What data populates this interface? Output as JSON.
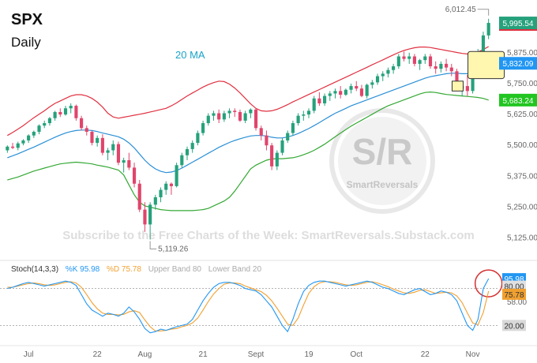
{
  "header": {
    "title": "SPX",
    "subtitle": "Daily"
  },
  "annotations": {
    "ma_label": "20 MA",
    "high_callout": "6,012.45",
    "low_callout": "5,119.26"
  },
  "watermark": {
    "logo_text": "S/R",
    "logo_subtext": "SmartReversals",
    "subscribe_text": "Subscribe to the Free Charts of the Week: SmartReversals.Substack.com"
  },
  "price_badges": [
    {
      "label": "5,995.54",
      "value": 5995.54,
      "color": "#26a17b"
    },
    {
      "label": "5,832.09",
      "value": 5832.09,
      "color": "#2196f3"
    },
    {
      "label": "5,683.24",
      "value": 5683.24,
      "color": "#21c521"
    }
  ],
  "stoch_legend": {
    "name": "Stoch(14,3,3)",
    "k_label": "%K 95.98",
    "d_label": "%D 75.78",
    "upper_label": "Upper Band 80",
    "lower_label": "Lower Band 20"
  },
  "stoch_badges": [
    {
      "label": "95.98",
      "value": 95.98,
      "color": "#2196f3"
    },
    {
      "label": "80.00",
      "value": 80.0,
      "color": "#e0e0e0"
    },
    {
      "label": "75.78",
      "value": 75.78,
      "color": "#f0a030"
    },
    {
      "label": "20.00",
      "value": 20.0,
      "color": "#d9d9d9"
    }
  ],
  "colors": {
    "up": "#26a17b",
    "down": "#e0456b",
    "ma": "#2a8fd6",
    "upper_band": "#e03040",
    "lower_band": "#34a834",
    "k": "#2196f3",
    "d": "#f0a030"
  },
  "chart_data": {
    "type": "candlestick",
    "x_tick_labels": [
      "Jul",
      "22",
      "Aug",
      "21",
      "Sept",
      "19",
      "Oct",
      "22",
      "Nov"
    ],
    "y_ticks": [
      5125,
      5250,
      5375,
      5500,
      5625,
      5750,
      5875
    ],
    "y_tick_labels": [
      "5,125.00",
      "5,250.00",
      "5,375.00",
      "5,500.00",
      "5,625.00",
      "5,750.00",
      "5,875.00"
    ],
    "ylim": [
      5060,
      6050
    ],
    "candles": [
      [
        5480,
        5500,
        5470,
        5495
      ],
      [
        5495,
        5510,
        5485,
        5490
      ],
      [
        5490,
        5515,
        5480,
        5508
      ],
      [
        5508,
        5525,
        5500,
        5520
      ],
      [
        5520,
        5545,
        5510,
        5540
      ],
      [
        5540,
        5560,
        5530,
        5555
      ],
      [
        5555,
        5585,
        5545,
        5580
      ],
      [
        5580,
        5600,
        5570,
        5590
      ],
      [
        5590,
        5615,
        5580,
        5610
      ],
      [
        5610,
        5640,
        5600,
        5635
      ],
      [
        5635,
        5650,
        5615,
        5625
      ],
      [
        5625,
        5660,
        5620,
        5650
      ],
      [
        5650,
        5670,
        5630,
        5660
      ],
      [
        5660,
        5665,
        5600,
        5610
      ],
      [
        5610,
        5620,
        5560,
        5570
      ],
      [
        5570,
        5580,
        5540,
        5555
      ],
      [
        5555,
        5560,
        5500,
        5510
      ],
      [
        5510,
        5540,
        5495,
        5530
      ],
      [
        5530,
        5545,
        5460,
        5470
      ],
      [
        5470,
        5490,
        5440,
        5480
      ],
      [
        5480,
        5520,
        5460,
        5505
      ],
      [
        5505,
        5515,
        5420,
        5430
      ],
      [
        5430,
        5450,
        5390,
        5440
      ],
      [
        5440,
        5470,
        5400,
        5410
      ],
      [
        5410,
        5430,
        5330,
        5345
      ],
      [
        5345,
        5360,
        5230,
        5240
      ],
      [
        5240,
        5270,
        5150,
        5180
      ],
      [
        5180,
        5270,
        5119,
        5260
      ],
      [
        5260,
        5300,
        5240,
        5290
      ],
      [
        5290,
        5330,
        5270,
        5320
      ],
      [
        5320,
        5355,
        5300,
        5345
      ],
      [
        5345,
        5350,
        5300,
        5335
      ],
      [
        5335,
        5430,
        5330,
        5420
      ],
      [
        5420,
        5470,
        5410,
        5460
      ],
      [
        5460,
        5495,
        5440,
        5485
      ],
      [
        5485,
        5520,
        5470,
        5510
      ],
      [
        5510,
        5560,
        5500,
        5550
      ],
      [
        5550,
        5600,
        5540,
        5590
      ],
      [
        5590,
        5630,
        5580,
        5620
      ],
      [
        5620,
        5640,
        5600,
        5630
      ],
      [
        5630,
        5645,
        5590,
        5605
      ],
      [
        5605,
        5640,
        5595,
        5630
      ],
      [
        5630,
        5650,
        5610,
        5640
      ],
      [
        5640,
        5650,
        5615,
        5635
      ],
      [
        5635,
        5645,
        5595,
        5600
      ],
      [
        5600,
        5640,
        5590,
        5630
      ],
      [
        5630,
        5650,
        5610,
        5645
      ],
      [
        5645,
        5650,
        5560,
        5570
      ],
      [
        5570,
        5580,
        5520,
        5540
      ],
      [
        5540,
        5560,
        5480,
        5500
      ],
      [
        5500,
        5510,
        5400,
        5415
      ],
      [
        5415,
        5480,
        5400,
        5470
      ],
      [
        5470,
        5530,
        5460,
        5520
      ],
      [
        5520,
        5560,
        5510,
        5550
      ],
      [
        5550,
        5600,
        5540,
        5590
      ],
      [
        5590,
        5630,
        5580,
        5620
      ],
      [
        5620,
        5640,
        5600,
        5625
      ],
      [
        5625,
        5650,
        5610,
        5640
      ],
      [
        5640,
        5700,
        5630,
        5690
      ],
      [
        5690,
        5715,
        5660,
        5670
      ],
      [
        5670,
        5710,
        5660,
        5700
      ],
      [
        5700,
        5720,
        5680,
        5710
      ],
      [
        5710,
        5730,
        5690,
        5720
      ],
      [
        5720,
        5740,
        5690,
        5705
      ],
      [
        5705,
        5730,
        5700,
        5725
      ],
      [
        5725,
        5750,
        5710,
        5740
      ],
      [
        5740,
        5760,
        5720,
        5730
      ],
      [
        5730,
        5745,
        5695,
        5700
      ],
      [
        5700,
        5750,
        5690,
        5745
      ],
      [
        5745,
        5765,
        5730,
        5755
      ],
      [
        5755,
        5790,
        5745,
        5780
      ],
      [
        5780,
        5800,
        5760,
        5790
      ],
      [
        5790,
        5815,
        5775,
        5805
      ],
      [
        5805,
        5830,
        5790,
        5820
      ],
      [
        5820,
        5870,
        5810,
        5860
      ],
      [
        5860,
        5880,
        5840,
        5850
      ],
      [
        5850,
        5875,
        5830,
        5860
      ],
      [
        5860,
        5870,
        5820,
        5830
      ],
      [
        5830,
        5850,
        5805,
        5845
      ],
      [
        5845,
        5870,
        5830,
        5860
      ],
      [
        5860,
        5870,
        5810,
        5820
      ],
      [
        5820,
        5840,
        5790,
        5810
      ],
      [
        5810,
        5840,
        5795,
        5830
      ],
      [
        5830,
        5850,
        5800,
        5815
      ],
      [
        5815,
        5830,
        5780,
        5800
      ],
      [
        5800,
        5810,
        5720,
        5730
      ],
      [
        5730,
        5750,
        5700,
        5740
      ],
      [
        5740,
        5785,
        5700,
        5720
      ],
      [
        5720,
        5810,
        5710,
        5800
      ],
      [
        5800,
        5890,
        5790,
        5880
      ],
      [
        5880,
        5960,
        5870,
        5945
      ],
      [
        5945,
        6012.45,
        5930,
        5995.54
      ]
    ],
    "ma20": [
      5450,
      5458,
      5466,
      5475,
      5484,
      5493,
      5503,
      5513,
      5523,
      5533,
      5542,
      5550,
      5556,
      5560,
      5562,
      5562,
      5560,
      5556,
      5550,
      5545,
      5540,
      5535,
      5525,
      5510,
      5490,
      5465,
      5440,
      5420,
      5405,
      5395,
      5390,
      5392,
      5398,
      5408,
      5420,
      5432,
      5444,
      5456,
      5468,
      5480,
      5492,
      5502,
      5512,
      5520,
      5527,
      5533,
      5538,
      5540,
      5540,
      5538,
      5533,
      5530,
      5530,
      5534,
      5540,
      5548,
      5558,
      5568,
      5580,
      5592,
      5605,
      5618,
      5630,
      5640,
      5650,
      5660,
      5668,
      5676,
      5684,
      5692,
      5700,
      5708,
      5716,
      5724,
      5732,
      5740,
      5748,
      5756,
      5764,
      5772,
      5778,
      5782,
      5786,
      5790,
      5792,
      5792,
      5790,
      5790,
      5795,
      5805,
      5818,
      5832.09
    ],
    "upper_band": [
      5540,
      5552,
      5566,
      5580,
      5596,
      5612,
      5626,
      5640,
      5656,
      5670,
      5680,
      5690,
      5700,
      5705,
      5705,
      5700,
      5690,
      5675,
      5655,
      5630,
      5615,
      5610,
      5614,
      5618,
      5622,
      5626,
      5630,
      5635,
      5640,
      5645,
      5650,
      5660,
      5672,
      5686,
      5700,
      5712,
      5724,
      5736,
      5746,
      5754,
      5760,
      5758,
      5748,
      5732,
      5712,
      5690,
      5668,
      5650,
      5640,
      5638,
      5640,
      5646,
      5655,
      5665,
      5676,
      5686,
      5696,
      5706,
      5716,
      5726,
      5736,
      5746,
      5756,
      5766,
      5776,
      5786,
      5796,
      5806,
      5816,
      5826,
      5836,
      5846,
      5856,
      5866,
      5876,
      5884,
      5890,
      5895,
      5898,
      5898,
      5896,
      5892,
      5888,
      5884,
      5880,
      5876,
      5872,
      5870,
      5872,
      5878,
      5888,
      5900
    ],
    "lower_band": [
      5360,
      5366,
      5372,
      5380,
      5388,
      5396,
      5402,
      5408,
      5414,
      5420,
      5425,
      5428,
      5430,
      5432,
      5430,
      5428,
      5425,
      5420,
      5416,
      5412,
      5406,
      5400,
      5380,
      5340,
      5300,
      5270,
      5255,
      5250,
      5245,
      5240,
      5238,
      5236,
      5236,
      5236,
      5236,
      5236,
      5238,
      5240,
      5245,
      5255,
      5265,
      5275,
      5290,
      5315,
      5345,
      5375,
      5405,
      5420,
      5430,
      5440,
      5445,
      5446,
      5446,
      5448,
      5450,
      5455,
      5462,
      5470,
      5480,
      5492,
      5505,
      5520,
      5535,
      5550,
      5564,
      5578,
      5590,
      5602,
      5614,
      5626,
      5638,
      5650,
      5660,
      5668,
      5676,
      5684,
      5692,
      5700,
      5708,
      5714,
      5716,
      5714,
      5710,
      5706,
      5704,
      5702,
      5700,
      5698,
      5696,
      5694,
      5690,
      5683.24
    ],
    "stochastic": {
      "ylim": [
        0,
        100
      ],
      "bands": [
        20,
        80
      ],
      "k": [
        80,
        82,
        85,
        88,
        90,
        88,
        86,
        84,
        86,
        88,
        90,
        92,
        90,
        85,
        70,
        55,
        45,
        40,
        35,
        40,
        38,
        35,
        40,
        50,
        42,
        30,
        15,
        8,
        10,
        14,
        12,
        15,
        18,
        20,
        22,
        30,
        45,
        60,
        72,
        82,
        88,
        90,
        90,
        88,
        85,
        80,
        78,
        76,
        70,
        60,
        50,
        35,
        20,
        10,
        30,
        55,
        75,
        85,
        90,
        92,
        92,
        90,
        88,
        86,
        84,
        86,
        88,
        90,
        92,
        90,
        86,
        82,
        80,
        76,
        72,
        70,
        74,
        78,
        80,
        75,
        70,
        72,
        76,
        74,
        70,
        60,
        40,
        20,
        12,
        30,
        80,
        95.98
      ],
      "d": [
        82,
        82,
        84,
        86,
        88,
        89,
        88,
        86,
        85,
        86,
        88,
        90,
        91,
        89,
        82,
        70,
        57,
        47,
        40,
        38,
        38,
        37,
        38,
        42,
        44,
        41,
        29,
        18,
        11,
        11,
        12,
        14,
        15,
        18,
        20,
        24,
        32,
        45,
        59,
        71,
        80,
        87,
        89,
        89,
        88,
        84,
        81,
        78,
        75,
        69,
        60,
        48,
        35,
        22,
        20,
        32,
        53,
        72,
        83,
        89,
        91,
        91,
        90,
        88,
        86,
        85,
        86,
        88,
        90,
        91,
        89,
        86,
        83,
        79,
        76,
        73,
        72,
        74,
        77,
        78,
        75,
        72,
        73,
        74,
        73,
        68,
        57,
        40,
        24,
        21,
        41,
        75.78
      ]
    }
  }
}
